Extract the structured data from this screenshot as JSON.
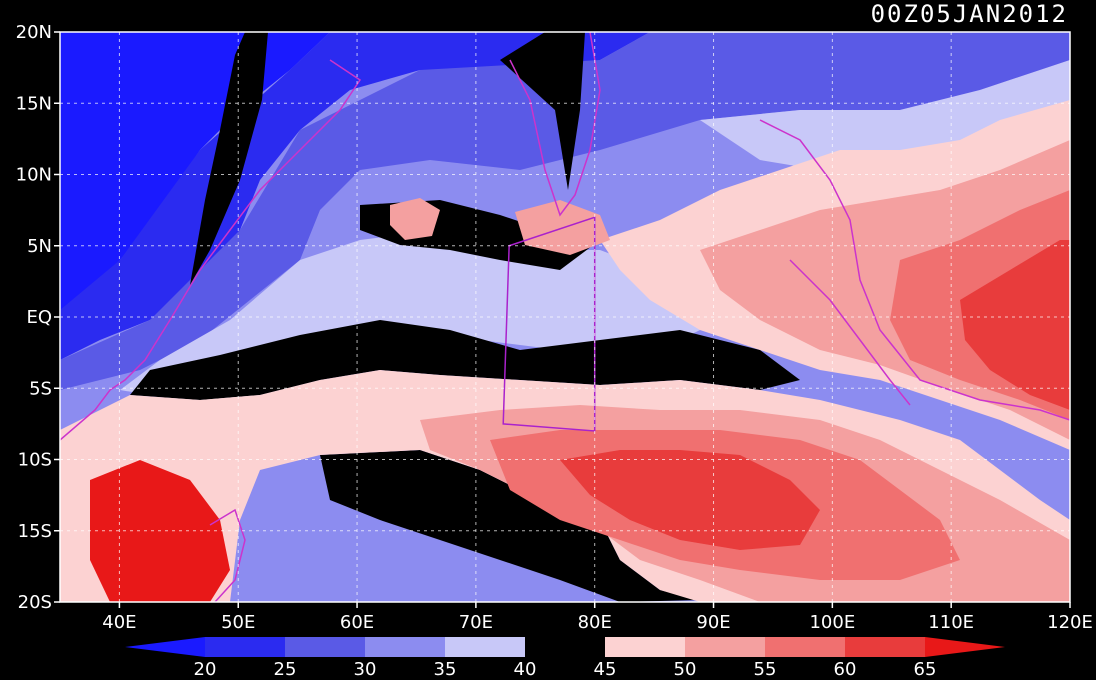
{
  "title": "00Z05JAN2012",
  "chart_data": {
    "type": "filled-contour-map",
    "x_axis": {
      "ticks": [
        "40E",
        "50E",
        "60E",
        "70E",
        "80E",
        "90E",
        "100E",
        "110E",
        "120E"
      ],
      "range": [
        35,
        120
      ]
    },
    "y_axis": {
      "ticks": [
        "20N",
        "15N",
        "10N",
        "5N",
        "EQ",
        "5S",
        "10S",
        "15S",
        "20S"
      ],
      "range": [
        -20,
        20
      ]
    },
    "grid": true,
    "grid_lat": [
      -15,
      -10,
      -5,
      0,
      5,
      10,
      15
    ],
    "grid_lon": [
      40,
      50,
      60,
      70,
      80,
      90,
      100,
      110
    ],
    "colorbar": {
      "labels": [
        "20",
        "25",
        "30",
        "35",
        "40",
        "45",
        "50",
        "55",
        "60",
        "65"
      ],
      "colors": [
        "#1a1aff",
        "#2b2bf0",
        "#5a5ae6",
        "#8c8cf0",
        "#c8c8f8",
        "#000000",
        "#fcd2d2",
        "#f4a0a0",
        "#f07070",
        "#e83c3c",
        "#e81818"
      ]
    },
    "overlay_box": [
      [
        72.8,
        5
      ],
      [
        80,
        7
      ],
      [
        80,
        -8
      ],
      [
        72.3,
        -7.5
      ]
    ]
  }
}
